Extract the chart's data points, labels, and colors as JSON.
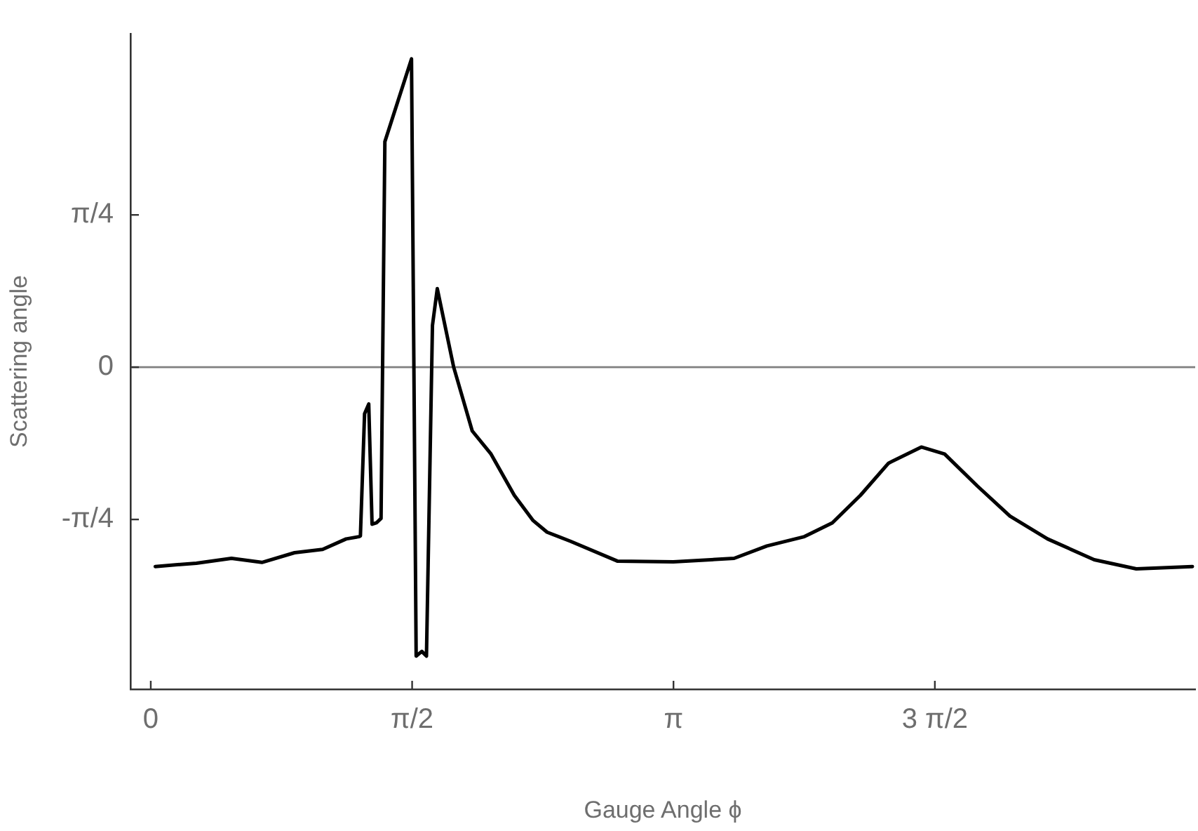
{
  "chart_data": {
    "type": "line",
    "xlabel": "Gauge Angle ϕ",
    "ylabel": "Scattering angle",
    "xlim": [
      -0.122,
      6.277
    ],
    "ylim": [
      -1.661,
      1.72
    ],
    "xticks": [
      0,
      {
        "value": 1.5708,
        "label": "π/2"
      },
      {
        "value": 3.1416,
        "label": "π"
      },
      {
        "value": 4.7124,
        "label": "3 π/2"
      }
    ],
    "yticks": [
      {
        "value": -0.7854,
        "label": "-π/4"
      },
      0,
      {
        "value": 0.7854,
        "label": "π/4"
      }
    ],
    "grid": false,
    "legend": false,
    "marker": "none",
    "line_style": "solid",
    "ref_lines": [
      {
        "axis": "y",
        "value": 0,
        "color": "#808080"
      }
    ],
    "series": [
      {
        "color": "#000000",
        "x": [
          0.027,
          0.274,
          0.485,
          0.668,
          0.864,
          1.033,
          1.174,
          1.252,
          1.26,
          1.285,
          1.31,
          1.33,
          1.356,
          1.384,
          1.407,
          1.567,
          1.595,
          1.629,
          1.657,
          1.693,
          1.722,
          1.82,
          1.932,
          2.045,
          2.185,
          2.298,
          2.382,
          2.523,
          2.804,
          3.141,
          3.506,
          3.703,
          3.928,
          4.096,
          4.265,
          4.434,
          4.631,
          4.771,
          4.968,
          5.164,
          5.39,
          5.67,
          5.923,
          6.26
        ],
        "values": [
          -1.028,
          -1.011,
          -0.986,
          -1.007,
          -0.957,
          -0.94,
          -0.886,
          -0.874,
          -0.87,
          -0.24,
          -0.19,
          -0.81,
          -0.803,
          -0.78,
          1.163,
          1.59,
          -1.49,
          -1.466,
          -1.49,
          0.215,
          0.405,
          0.002,
          -0.329,
          -0.448,
          -0.661,
          -0.791,
          -0.851,
          -0.898,
          -1.0,
          -1.004,
          -0.986,
          -0.922,
          -0.874,
          -0.803,
          -0.661,
          -0.495,
          -0.412,
          -0.448,
          -0.613,
          -0.768,
          -0.886,
          -0.993,
          -1.04,
          -1.028
        ]
      }
    ]
  }
}
